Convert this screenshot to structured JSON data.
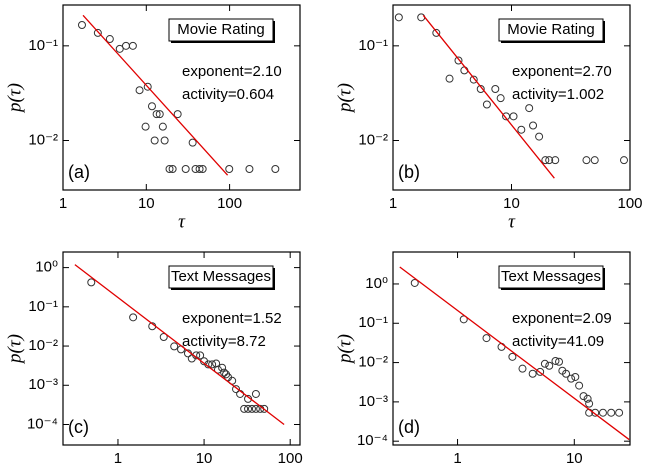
{
  "chart_data": [
    {
      "type": "scatter",
      "panel_label": "(a)",
      "box_label": "Movie Rating",
      "annotations": [
        "exponent=2.10",
        "activity=0.604"
      ],
      "x_label": "τ",
      "y_label": "p(τ)",
      "xscale": "log",
      "yscale": "log",
      "xlim": [
        1,
        700
      ],
      "ylim": [
        0.003,
        0.27
      ],
      "xticks": [
        1,
        10,
        100
      ],
      "yticks": [
        {
          "value": 0.01,
          "label": "10⁻²"
        },
        {
          "value": 0.1,
          "label": "10⁻¹"
        }
      ],
      "color": "#333333",
      "x": [
        1.69,
        2.62,
        3.65,
        4.8,
        5.7,
        6.9,
        8.3,
        10.4,
        11.7,
        9.8,
        13.3,
        14.5,
        15.8,
        12.6,
        16.6,
        23.8,
        36,
        19,
        20.7,
        29.7,
        39,
        43.6,
        47.5,
        99,
        173,
        354
      ],
      "values": [
        0.166,
        0.137,
        0.118,
        0.093,
        0.1,
        0.1,
        0.034,
        0.037,
        0.023,
        0.014,
        0.019,
        0.019,
        0.014,
        0.01,
        0.01,
        0.019,
        0.0095,
        0.005,
        0.005,
        0.005,
        0.005,
        0.005,
        0.005,
        0.005,
        0.005,
        0.005
      ],
      "fit": {
        "color": "#e00000",
        "x": [
          1.74,
          94.6
        ],
        "values": [
          0.21,
          0.0043
        ]
      }
    },
    {
      "type": "scatter",
      "panel_label": "(b)",
      "box_label": "Movie Rating",
      "annotations": [
        "exponent=2.70",
        "activity=1.002"
      ],
      "x_label": "τ",
      "y_label": "p(τ)",
      "xscale": "log",
      "yscale": "log",
      "xlim": [
        1,
        100
      ],
      "ylim": [
        0.003,
        0.27
      ],
      "xticks": [
        1,
        10,
        100
      ],
      "yticks": [
        {
          "value": 0.01,
          "label": "10⁻²"
        },
        {
          "value": 0.1,
          "label": "10⁻¹"
        }
      ],
      "color": "#333333",
      "x": [
        1.12,
        1.73,
        2.32,
        3.0,
        3.57,
        4.0,
        4.8,
        5.5,
        6.2,
        7.3,
        8.1,
        9.0,
        10.4,
        12.1,
        14.1,
        15.2,
        17.1,
        19.3,
        20.8,
        23.4,
        42.9,
        50.4,
        89
      ],
      "values": [
        0.2,
        0.2,
        0.137,
        0.045,
        0.07,
        0.055,
        0.044,
        0.035,
        0.024,
        0.035,
        0.028,
        0.018,
        0.018,
        0.013,
        0.022,
        0.0144,
        0.011,
        0.0062,
        0.0062,
        0.0062,
        0.0062,
        0.0062,
        0.0062
      ],
      "fit": {
        "color": "#e00000",
        "x": [
          1.8,
          23
        ],
        "values": [
          0.21,
          0.004
        ]
      }
    },
    {
      "type": "scatter",
      "panel_label": "(c)",
      "box_label": "Text Messages",
      "annotations": [
        "exponent=1.52",
        "activity=8.72"
      ],
      "x_label": "τ",
      "y_label": "p(τ)",
      "xscale": "log",
      "yscale": "log",
      "xlim": [
        0.23,
        130
      ],
      "ylim": [
        3e-05,
        2.5
      ],
      "xticks": [
        1,
        10,
        100
      ],
      "yticks": [
        {
          "value": 0.0001,
          "label": "10⁻⁴"
        },
        {
          "value": 0.001,
          "label": "10⁻³"
        },
        {
          "value": 0.01,
          "label": "10⁻²"
        },
        {
          "value": 0.1,
          "label": "10⁻¹"
        },
        {
          "value": 1,
          "label": "10⁰"
        }
      ],
      "color": "#333333",
      "x": [
        0.49,
        1.5,
        2.5,
        3.4,
        4.5,
        5.4,
        6.5,
        7.2,
        8.1,
        9,
        10,
        11.2,
        12.4,
        13.8,
        14.5,
        16.2,
        17.1,
        18,
        19,
        21.2,
        23.5,
        26.2,
        29.2,
        32.4,
        36,
        40,
        44.8,
        49.9,
        32.4,
        40
      ],
      "values": [
        0.42,
        0.054,
        0.032,
        0.017,
        0.0098,
        0.0082,
        0.0065,
        0.0048,
        0.0058,
        0.0058,
        0.0041,
        0.0034,
        0.0034,
        0.0036,
        0.0025,
        0.0028,
        0.0021,
        0.0019,
        0.0016,
        0.0013,
        0.0008,
        0.0006,
        0.00025,
        0.00025,
        0.00025,
        0.00025,
        0.00025,
        0.00025,
        0.00045,
        0.0006
      ],
      "fit": {
        "color": "#e00000",
        "x": [
          0.316,
          85
        ],
        "values": [
          1.19,
          0.0001
        ]
      }
    },
    {
      "type": "scatter",
      "panel_label": "(d)",
      "box_label": "Text Messages",
      "annotations": [
        "exponent=2.09",
        "activity=41.09"
      ],
      "x_label": "τ",
      "y_label": "p(τ)",
      "xscale": "log",
      "yscale": "log",
      "xlim": [
        0.28,
        30
      ],
      "ylim": [
        8e-05,
        6.5
      ],
      "xticks": [
        1,
        10
      ],
      "yticks": [
        {
          "value": 0.0001,
          "label": "10⁻⁴"
        },
        {
          "value": 0.001,
          "label": "10⁻³"
        },
        {
          "value": 0.01,
          "label": "10⁻²"
        },
        {
          "value": 0.1,
          "label": "10⁻¹"
        },
        {
          "value": 1,
          "label": "10⁰"
        }
      ],
      "color": "#333333",
      "x": [
        0.43,
        1.13,
        1.77,
        2.38,
        2.95,
        3.6,
        4.4,
        5.1,
        5.6,
        6.1,
        6.9,
        7.4,
        7.9,
        8.5,
        9.4,
        10.2,
        11,
        12,
        13,
        13.4,
        15.1,
        17.6,
        20.7,
        24.2,
        13.4
      ],
      "values": [
        1.06,
        0.126,
        0.042,
        0.025,
        0.014,
        0.007,
        0.0052,
        0.0058,
        0.0093,
        0.0083,
        0.011,
        0.0105,
        0.0062,
        0.0052,
        0.0039,
        0.0043,
        0.0026,
        0.0014,
        0.0012,
        0.00053,
        0.00053,
        0.00053,
        0.00053,
        0.00053,
        0.0009
      ],
      "fit": {
        "color": "#e00000",
        "x": [
          0.32,
          29.5
        ],
        "values": [
          2.7,
          0.00011
        ]
      }
    }
  ]
}
